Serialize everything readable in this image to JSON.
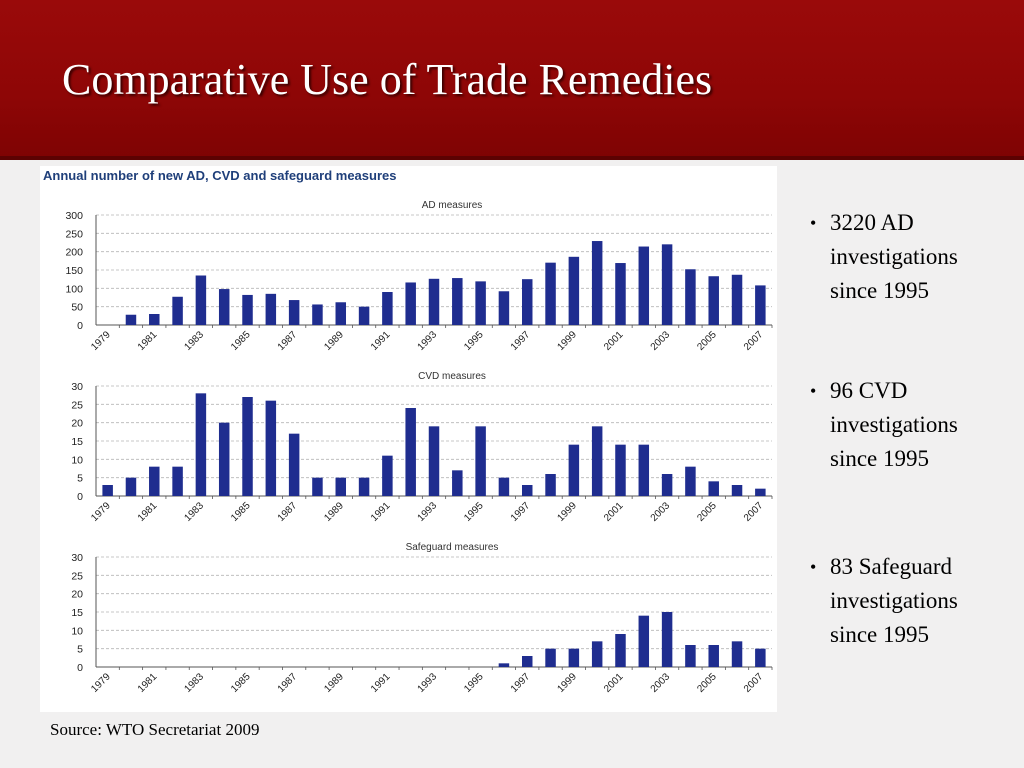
{
  "slide": {
    "title": "Comparative Use of Trade Remedies",
    "source": "Source: WTO Secretariat 2009",
    "figure_title": "Annual number of new AD, CVD and safeguard measures",
    "bullets": [
      "3220 AD investigations since 1995",
      "96 CVD investigations since 1995",
      "83 Safeguard investigations since 1995"
    ],
    "bullet_char": "•"
  },
  "colors": {
    "header": "#8e0606",
    "bar": "#1f2d8f",
    "grid": "#b5b5b5",
    "figure_title": "#1f3f7a"
  },
  "chart_data": [
    {
      "type": "bar",
      "title": "AD measures",
      "categories": [
        "1979",
        "1980",
        "1981",
        "1982",
        "1983",
        "1984",
        "1985",
        "1986",
        "1987",
        "1988",
        "1989",
        "1990",
        "1991",
        "1992",
        "1993",
        "1994",
        "1995",
        "1996",
        "1997",
        "1998",
        "1999",
        "2000",
        "2001",
        "2002",
        "2003",
        "2004",
        "2005",
        "2006",
        "2007"
      ],
      "tick_labels": [
        "1979",
        "1981",
        "1983",
        "1985",
        "1987",
        "1989",
        "1991",
        "1993",
        "1995",
        "1997",
        "1999",
        "2001",
        "2003",
        "2005",
        "2007"
      ],
      "values": [
        0,
        28,
        30,
        77,
        135,
        98,
        82,
        85,
        68,
        56,
        62,
        50,
        90,
        116,
        126,
        128,
        119,
        92,
        125,
        170,
        186,
        229,
        169,
        214,
        220,
        152,
        133,
        137,
        108
      ],
      "ylim": [
        0,
        300
      ],
      "yticks": [
        0,
        50,
        100,
        150,
        200,
        250,
        300
      ],
      "grid": true
    },
    {
      "type": "bar",
      "title": "CVD measures",
      "categories": [
        "1979",
        "1980",
        "1981",
        "1982",
        "1983",
        "1984",
        "1985",
        "1986",
        "1987",
        "1988",
        "1989",
        "1990",
        "1991",
        "1992",
        "1993",
        "1994",
        "1995",
        "1996",
        "1997",
        "1998",
        "1999",
        "2000",
        "2001",
        "2002",
        "2003",
        "2004",
        "2005",
        "2006",
        "2007"
      ],
      "tick_labels": [
        "1979",
        "1981",
        "1983",
        "1985",
        "1987",
        "1989",
        "1991",
        "1993",
        "1995",
        "1997",
        "1999",
        "2001",
        "2003",
        "2005",
        "2007"
      ],
      "values": [
        3,
        5,
        8,
        8,
        28,
        20,
        27,
        26,
        17,
        5,
        5,
        5,
        11,
        24,
        19,
        7,
        19,
        5,
        3,
        6,
        14,
        19,
        14,
        14,
        6,
        8,
        4,
        3,
        2
      ],
      "ylim": [
        0,
        30
      ],
      "yticks": [
        0,
        5,
        10,
        15,
        20,
        25,
        30
      ],
      "grid": true
    },
    {
      "type": "bar",
      "title": "Safeguard measures",
      "categories": [
        "1979",
        "1980",
        "1981",
        "1982",
        "1983",
        "1984",
        "1985",
        "1986",
        "1987",
        "1988",
        "1989",
        "1990",
        "1991",
        "1992",
        "1993",
        "1994",
        "1995",
        "1996",
        "1997",
        "1998",
        "1999",
        "2000",
        "2001",
        "2002",
        "2003",
        "2004",
        "2005",
        "2006",
        "2007"
      ],
      "tick_labels": [
        "1979",
        "1981",
        "1983",
        "1985",
        "1987",
        "1989",
        "1991",
        "1993",
        "1995",
        "1997",
        "1999",
        "2001",
        "2003",
        "2005",
        "2007"
      ],
      "values": [
        0,
        0,
        0,
        0,
        0,
        0,
        0,
        0,
        0,
        0,
        0,
        0,
        0,
        0,
        0,
        0,
        0,
        1,
        3,
        5,
        5,
        7,
        9,
        14,
        15,
        6,
        6,
        7,
        5
      ],
      "ylim": [
        0,
        30
      ],
      "yticks": [
        0,
        5,
        10,
        15,
        20,
        25,
        30
      ],
      "grid": true
    }
  ]
}
